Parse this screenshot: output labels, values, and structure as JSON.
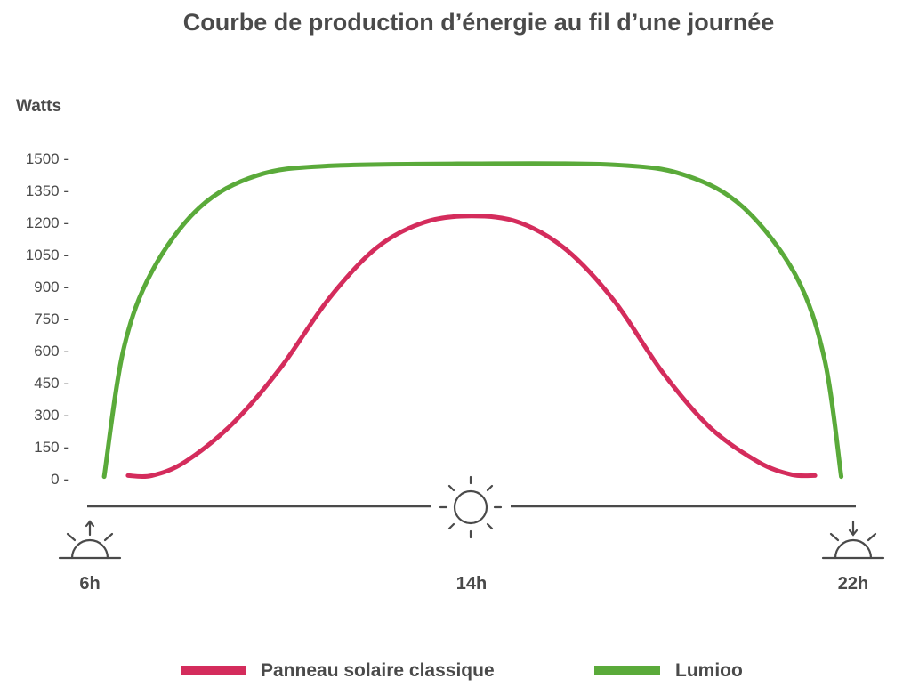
{
  "chart_data": {
    "type": "line",
    "title": "Courbe de production d’énergie au fil d’une journée",
    "ylabel": "Watts",
    "xlabel": "",
    "ylim": [
      0,
      1500
    ],
    "xlim": [
      6,
      22
    ],
    "yticks": [
      0,
      150,
      300,
      450,
      600,
      750,
      900,
      1050,
      1200,
      1350,
      1500
    ],
    "ytick_labels": [
      "0 -",
      "150 -",
      "300 -",
      "450 -",
      "600 -",
      "750 -",
      "900 -",
      "1050 -",
      "1200 -",
      "1350 -",
      "1500 -"
    ],
    "xticks": [
      {
        "x": 6,
        "label": "6h",
        "icon": "sunrise-icon"
      },
      {
        "x": 14,
        "label": "14h",
        "icon": "sun-icon"
      },
      {
        "x": 22,
        "label": "22h",
        "icon": "sunset-icon"
      }
    ],
    "grid": false,
    "legend_position": "bottom",
    "series": [
      {
        "name": "Panneau solaire classique",
        "color": "#d42c5c",
        "points": [
          [
            6.8,
            15
          ],
          [
            7.3,
            15
          ],
          [
            8,
            80
          ],
          [
            9,
            260
          ],
          [
            10,
            520
          ],
          [
            11,
            840
          ],
          [
            12,
            1080
          ],
          [
            13,
            1200
          ],
          [
            14,
            1230
          ],
          [
            15,
            1200
          ],
          [
            16,
            1070
          ],
          [
            17,
            830
          ],
          [
            18,
            500
          ],
          [
            19,
            240
          ],
          [
            20,
            80
          ],
          [
            20.7,
            20
          ],
          [
            21.2,
            15
          ]
        ]
      },
      {
        "name": "Lumioo",
        "color": "#5aaa3a",
        "points": [
          [
            6.3,
            10
          ],
          [
            6.7,
            600
          ],
          [
            7.3,
            970
          ],
          [
            8.3,
            1270
          ],
          [
            9.5,
            1420
          ],
          [
            11,
            1465
          ],
          [
            14,
            1475
          ],
          [
            17,
            1470
          ],
          [
            18.5,
            1420
          ],
          [
            19.7,
            1270
          ],
          [
            20.8,
            950
          ],
          [
            21.4,
            560
          ],
          [
            21.75,
            10
          ]
        ]
      }
    ]
  }
}
